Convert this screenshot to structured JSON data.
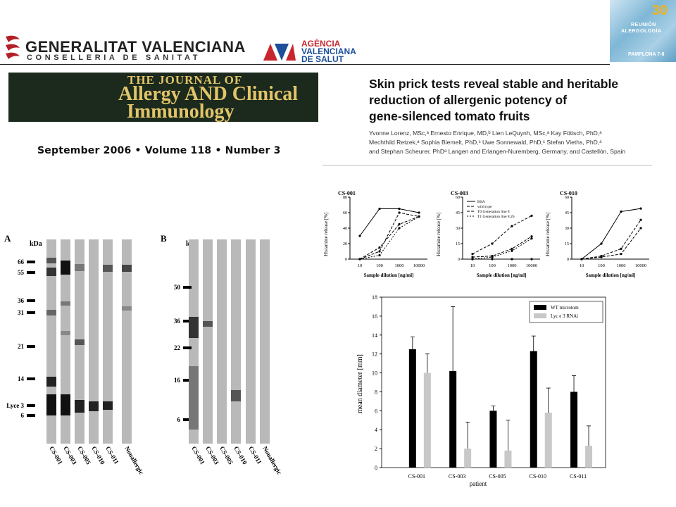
{
  "header": {
    "org_name": "GENERALITAT VALENCIANA",
    "org_sub": "CONSELLERIA DE SANITAT",
    "agency_line1": "AGÈNCIA",
    "agency_line2": "VALENCIANA",
    "agency_line3": "DE SALUT",
    "agency_mark": "AVS",
    "badge_number": "30",
    "badge_line1": "REUNIÓN",
    "badge_line2": "ALERGOLOGÍA",
    "badge_footer": "PAMPLONA 7-8"
  },
  "journal": {
    "name_line1": "THE JOURNAL OF",
    "name_line2": "Allergy AND Clinical",
    "name_line3": "Immunology",
    "issue": "September 2006 • Volume 118 • Number 3"
  },
  "article": {
    "title_lines": [
      "Skin prick tests reveal stable and heritable",
      "reduction of allergenic potency of",
      "gene-silenced tomato fruits"
    ],
    "authors_lines": [
      "Yvonne Lorenz, MSc,ᵃ Ernesto Enrique, MD,ᵇ Lien LeQuynh, MSc,ᵃ Kay Fötisch, PhD,ᵃ",
      "Mechthild Retzek,ᵃ Sophia Biemelt, PhD,ᶜ Uwe Sonnewald, PhD,ᶜ Stefan Vieths, PhD,ᵃ",
      "and Stephan Scheurer, PhDᵃ Langen and Erlangen-Nuremberg, Germany, and Castellón, Spain"
    ]
  },
  "blots": {
    "panel_a": {
      "label": "A",
      "unit": "kDa",
      "markers": [
        "66",
        "55",
        "36",
        "31",
        "21",
        "14",
        "Lyce 3",
        "6"
      ],
      "lanes": [
        "CS-001",
        "CS-003",
        "CS-005",
        "CS-010",
        "CS-011",
        "Nonallergic"
      ]
    },
    "panel_b": {
      "label": "B",
      "unit": "kDa",
      "markers": [
        "50",
        "36",
        "22",
        "16",
        "6"
      ],
      "lanes": [
        "CS-001",
        "CS-003",
        "CS-005",
        "CS-010",
        "CS-011",
        "Nonallergic"
      ]
    }
  },
  "histamine_charts": [
    {
      "type": "line",
      "title": "CS-001",
      "xlabel": "Sample dilution [ng/ml]",
      "ylabel": "Histamine release [%]",
      "x": [
        "10",
        "100",
        "1000",
        "10000"
      ],
      "ylim": [
        0,
        80
      ],
      "series": [
        {
          "values": [
            30,
            65,
            65,
            60
          ]
        },
        {
          "values": [
            0,
            15,
            45,
            55
          ]
        },
        {
          "values": [
            0,
            10,
            60,
            55
          ]
        },
        {
          "values": [
            0,
            5,
            40,
            55
          ]
        }
      ]
    },
    {
      "type": "line",
      "title": "CS-003",
      "xlabel": "Sample dilution [ng/ml]",
      "ylabel": "Histamine release [%]",
      "x": [
        "10",
        "100",
        "1000",
        "10000"
      ],
      "ylim": [
        0,
        60
      ],
      "legend": [
        "BSA",
        "wild type",
        "T0 Generation line 8",
        "T1 Generation line 8.26"
      ],
      "series": [
        {
          "name": "BSA",
          "values": [
            0,
            0,
            0,
            0
          ]
        },
        {
          "name": "wild type",
          "values": [
            5,
            15,
            32,
            42
          ]
        },
        {
          "name": "T0 Generation line 8",
          "values": [
            2,
            3,
            10,
            22
          ]
        },
        {
          "name": "T1 Generation line 8.26",
          "values": [
            0,
            2,
            8,
            20
          ]
        }
      ]
    },
    {
      "type": "line",
      "title": "CS-010",
      "xlabel": "Sample dilution [ng/ml]",
      "ylabel": "Histamine release [%]",
      "x": [
        "10",
        "100",
        "1000",
        "10000"
      ],
      "ylim": [
        0,
        60
      ],
      "series": [
        {
          "values": [
            0,
            15,
            46,
            49
          ]
        },
        {
          "values": [
            0,
            3,
            10,
            38
          ]
        },
        {
          "values": [
            0,
            2,
            5,
            30
          ]
        }
      ]
    }
  ],
  "chart_data": {
    "type": "bar",
    "xlabel": "patient",
    "ylabel": "mean diameter [mm]",
    "ylim": [
      0,
      18
    ],
    "yticks": [
      "0",
      "2",
      "4",
      "6",
      "8",
      "10",
      "12",
      "14",
      "16",
      "18"
    ],
    "categories": [
      "CS-001",
      "CS-003",
      "CS-005",
      "CS-010",
      "CS-011"
    ],
    "legend_position": "top-right",
    "series": [
      {
        "name": "WT microtom",
        "color": "#000000",
        "values": [
          12.5,
          10.2,
          6.0,
          12.3,
          8.0
        ],
        "errors": [
          1.3,
          6.8,
          0.5,
          1.6,
          1.7
        ]
      },
      {
        "name": "Lyc e 3 RNAi",
        "color": "#c8c8c8",
        "values": [
          10.0,
          2.0,
          1.8,
          5.8,
          2.3
        ],
        "errors": [
          2.0,
          2.8,
          3.2,
          2.6,
          2.1
        ]
      }
    ]
  }
}
